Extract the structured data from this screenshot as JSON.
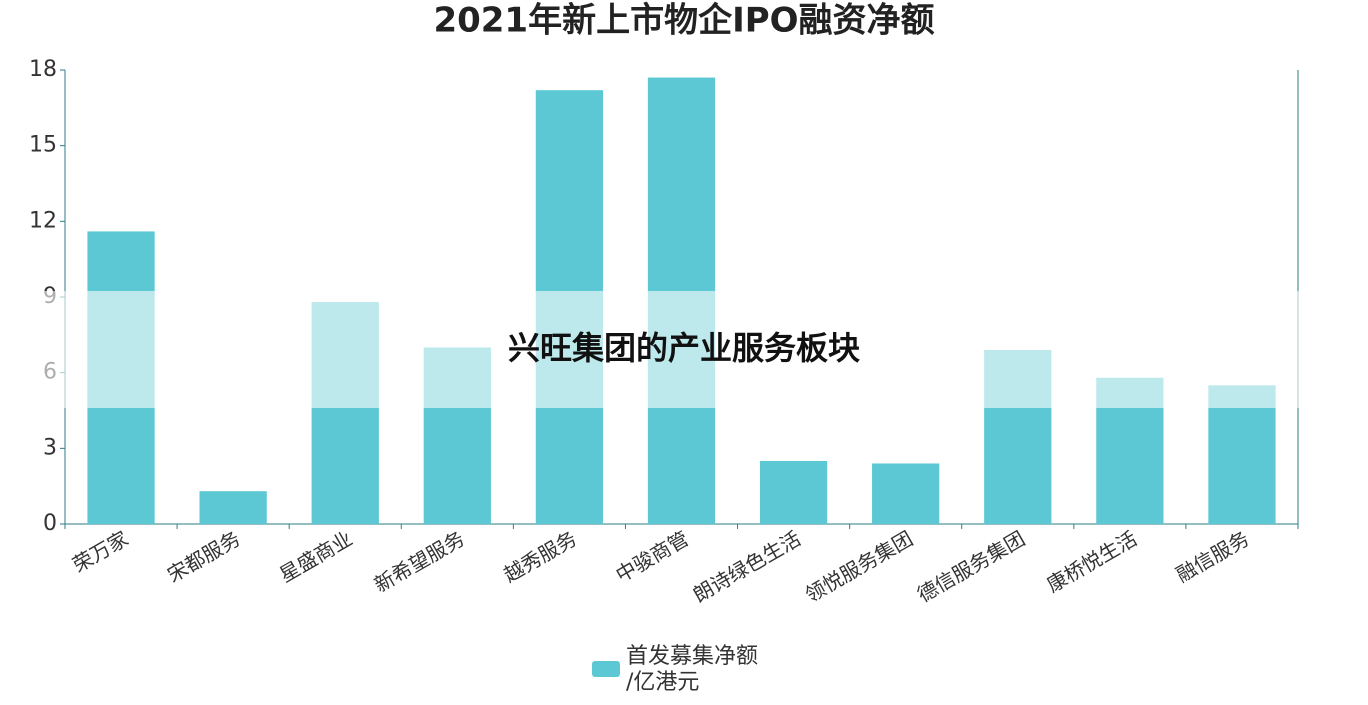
{
  "chart_data": {
    "type": "bar",
    "title": "2021年新上市物企IPO融资净额",
    "categories": [
      "荣万家",
      "宋都服务",
      "星盛商业",
      "新希望服务",
      "越秀服务",
      "中骏商管",
      "朗诗绿色生活",
      "领悦服务集团",
      "德信服务集团",
      "康桥悦生活",
      "融信服务"
    ],
    "series": [
      {
        "name": "首发募集净额/亿港元",
        "color": "#5bc8d3",
        "values": [
          11.6,
          1.3,
          8.8,
          7.0,
          17.2,
          17.7,
          2.5,
          2.4,
          6.9,
          5.8,
          5.5
        ]
      }
    ],
    "ylim": [
      0,
      18
    ],
    "yticks": [
      0,
      3,
      6,
      9,
      12,
      15,
      18
    ],
    "grid": false,
    "legend": "bottom"
  },
  "overlay": {
    "text": "兴旺集团的产业服务板块"
  }
}
